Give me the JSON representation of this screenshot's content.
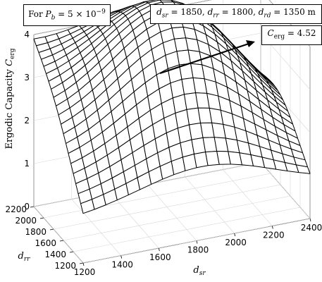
{
  "chart_data": {
    "type": "surface",
    "title": "",
    "xlabel": "d_sr",
    "ylabel": "d_rr",
    "zlabel": "Ergodic Capacity C_erg",
    "xlim": [
      1200,
      2400
    ],
    "ylim": [
      1200,
      2200
    ],
    "zlim": [
      0,
      4
    ],
    "xticks": [
      "1200",
      "1400",
      "1600",
      "1800",
      "2000",
      "2200",
      "2400"
    ],
    "yticks": [
      "1200",
      "1400",
      "1600",
      "1800",
      "2000",
      "2200"
    ],
    "zticks": [
      "0",
      "1",
      "2",
      "3",
      "4"
    ],
    "grid": true,
    "surface": {
      "x_points": 21,
      "y_points": 21,
      "peak": {
        "x": 1850,
        "y": 1800,
        "z": 4.52
      },
      "corners": {
        "x1200_y1200": 1.0,
        "x2400_y1200": 0.8,
        "x1200_y2200": 3.6,
        "x2400_y2200": 1.6
      }
    },
    "annotations": {
      "condition": {
        "prefix": "For ",
        "symbol": "P_b",
        "text": "P_b = 5 × 10^-9"
      },
      "distances": {
        "text": "d_sr = 1850, d_rr = 1800, d_rd = 1350 m",
        "unit": "m"
      },
      "peak_label": {
        "text": "C_erg = 4.52"
      }
    }
  }
}
